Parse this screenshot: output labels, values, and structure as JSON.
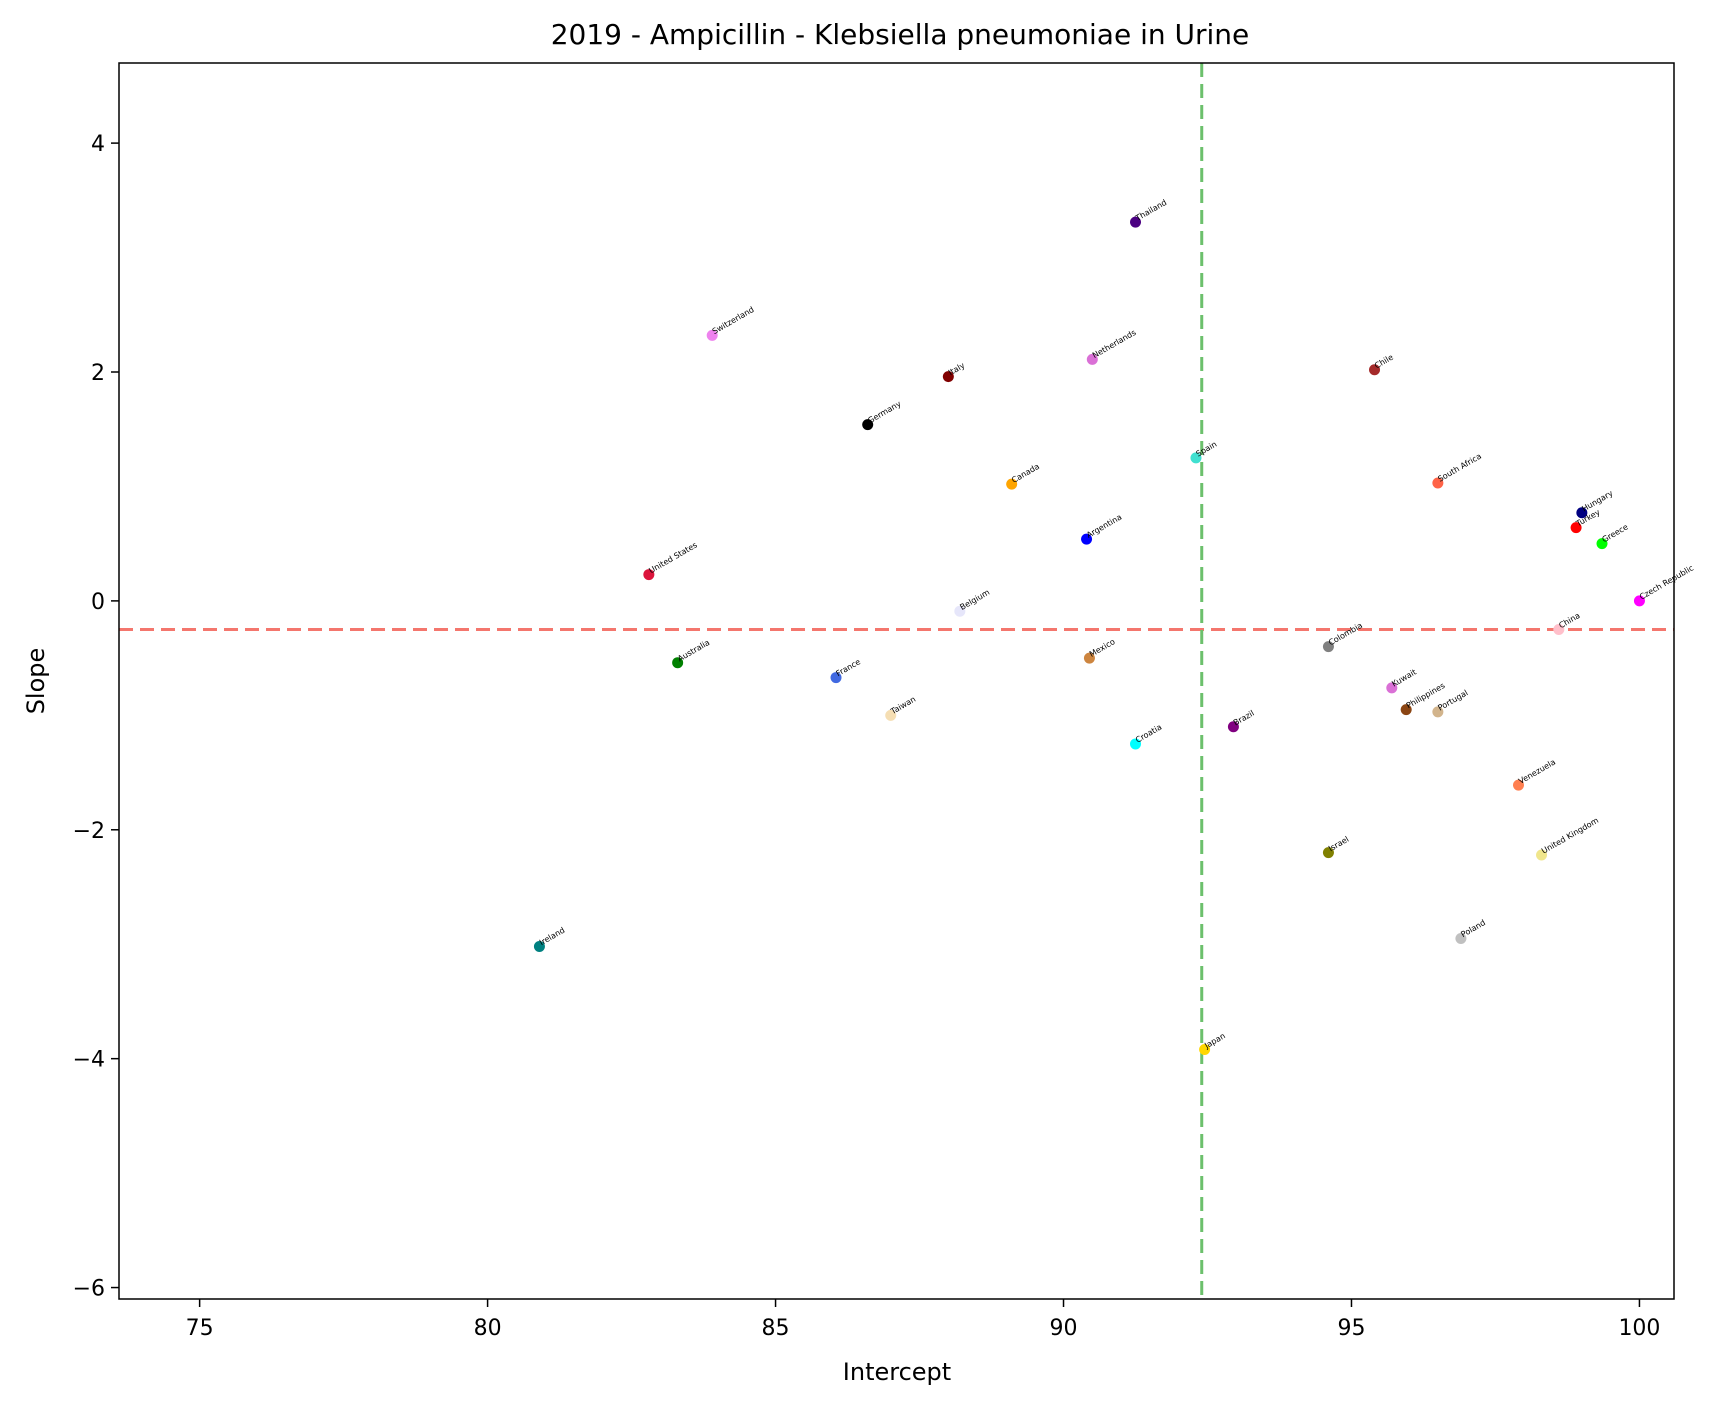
{
  "chart_data": {
    "type": "scatter",
    "title": "2019 - Ampicillin - Klebsiella pneumoniae in Urine",
    "xlabel": "Intercept",
    "ylabel": "Slope",
    "xlim": [
      73.6,
      100.6
    ],
    "ylim": [
      -6.1,
      4.7
    ],
    "xticks": [
      75,
      80,
      85,
      90,
      95,
      100
    ],
    "yticks": [
      4,
      2,
      0,
      -2,
      -4,
      -6
    ],
    "xtick_labels": [
      "75",
      "80",
      "85",
      "90",
      "95",
      "100"
    ],
    "ytick_labels": [
      "4",
      "2",
      "0",
      "−2",
      "−4",
      "−6"
    ],
    "grid": false,
    "reference_lines": {
      "horizontal": {
        "y": -0.25,
        "color": "#f4766d",
        "style": "dashed"
      },
      "vertical": {
        "x": 92.4,
        "color": "#6cc06c",
        "style": "dashed"
      }
    },
    "points": [
      {
        "label": "Thailand",
        "x": 91.25,
        "y": 3.31,
        "color": "#4b0082"
      },
      {
        "label": "Switzerland",
        "x": 83.9,
        "y": 2.32,
        "color": "#ee82ee"
      },
      {
        "label": "Netherlands",
        "x": 90.5,
        "y": 2.11,
        "color": "#da70d6"
      },
      {
        "label": "Italy",
        "x": 88.0,
        "y": 1.96,
        "color": "#800000"
      },
      {
        "label": "Chile",
        "x": 95.4,
        "y": 2.02,
        "color": "#a52a2a"
      },
      {
        "label": "Germany",
        "x": 86.6,
        "y": 1.54,
        "color": "#000000"
      },
      {
        "label": "Spain",
        "x": 92.3,
        "y": 1.25,
        "color": "#40e0d0"
      },
      {
        "label": "Canada",
        "x": 89.1,
        "y": 1.02,
        "color": "#ffa500"
      },
      {
        "label": "South Africa",
        "x": 96.5,
        "y": 1.03,
        "color": "#ff6347"
      },
      {
        "label": "Hungary",
        "x": 99.0,
        "y": 0.77,
        "color": "#000080"
      },
      {
        "label": "Turkey",
        "x": 98.9,
        "y": 0.64,
        "color": "#ff0000"
      },
      {
        "label": "Greece",
        "x": 99.35,
        "y": 0.5,
        "color": "#00ff00"
      },
      {
        "label": "Argentina",
        "x": 90.4,
        "y": 0.54,
        "color": "#0000ff"
      },
      {
        "label": "United States",
        "x": 82.8,
        "y": 0.23,
        "color": "#dc143c"
      },
      {
        "label": "Czech Republic",
        "x": 100.0,
        "y": 0.0,
        "color": "#ff00ff"
      },
      {
        "label": "Belgium",
        "x": 88.2,
        "y": -0.09,
        "color": "#e6e6fa"
      },
      {
        "label": "China",
        "x": 98.6,
        "y": -0.25,
        "color": "#ffc0cb"
      },
      {
        "label": "Colombia",
        "x": 94.6,
        "y": -0.4,
        "color": "#808080"
      },
      {
        "label": "Mexico",
        "x": 90.45,
        "y": -0.5,
        "color": "#cd853f"
      },
      {
        "label": "Australia",
        "x": 83.3,
        "y": -0.54,
        "color": "#008000"
      },
      {
        "label": "France",
        "x": 86.05,
        "y": -0.67,
        "color": "#4169e1"
      },
      {
        "label": "Kuwait",
        "x": 95.7,
        "y": -0.76,
        "color": "#da70d6"
      },
      {
        "label": "Philippines",
        "x": 95.95,
        "y": -0.95,
        "color": "#8b4513"
      },
      {
        "label": "Portugal",
        "x": 96.5,
        "y": -0.97,
        "color": "#d2b48c"
      },
      {
        "label": "Taiwan",
        "x": 87.0,
        "y": -1.0,
        "color": "#f5deb3"
      },
      {
        "label": "Brazil",
        "x": 92.95,
        "y": -1.1,
        "color": "#800080"
      },
      {
        "label": "Croatia",
        "x": 91.25,
        "y": -1.25,
        "color": "#00ffff"
      },
      {
        "label": "Venezuela",
        "x": 97.9,
        "y": -1.61,
        "color": "#ff7f50"
      },
      {
        "label": "Israel",
        "x": 94.6,
        "y": -2.2,
        "color": "#808000"
      },
      {
        "label": "United Kingdom",
        "x": 98.3,
        "y": -2.22,
        "color": "#f0e68c"
      },
      {
        "label": "Poland",
        "x": 96.9,
        "y": -2.95,
        "color": "#c0c0c0"
      },
      {
        "label": "Ireland",
        "x": 80.9,
        "y": -3.02,
        "color": "#008080"
      },
      {
        "label": "Japan",
        "x": 92.45,
        "y": -3.92,
        "color": "#ffd700"
      }
    ]
  }
}
